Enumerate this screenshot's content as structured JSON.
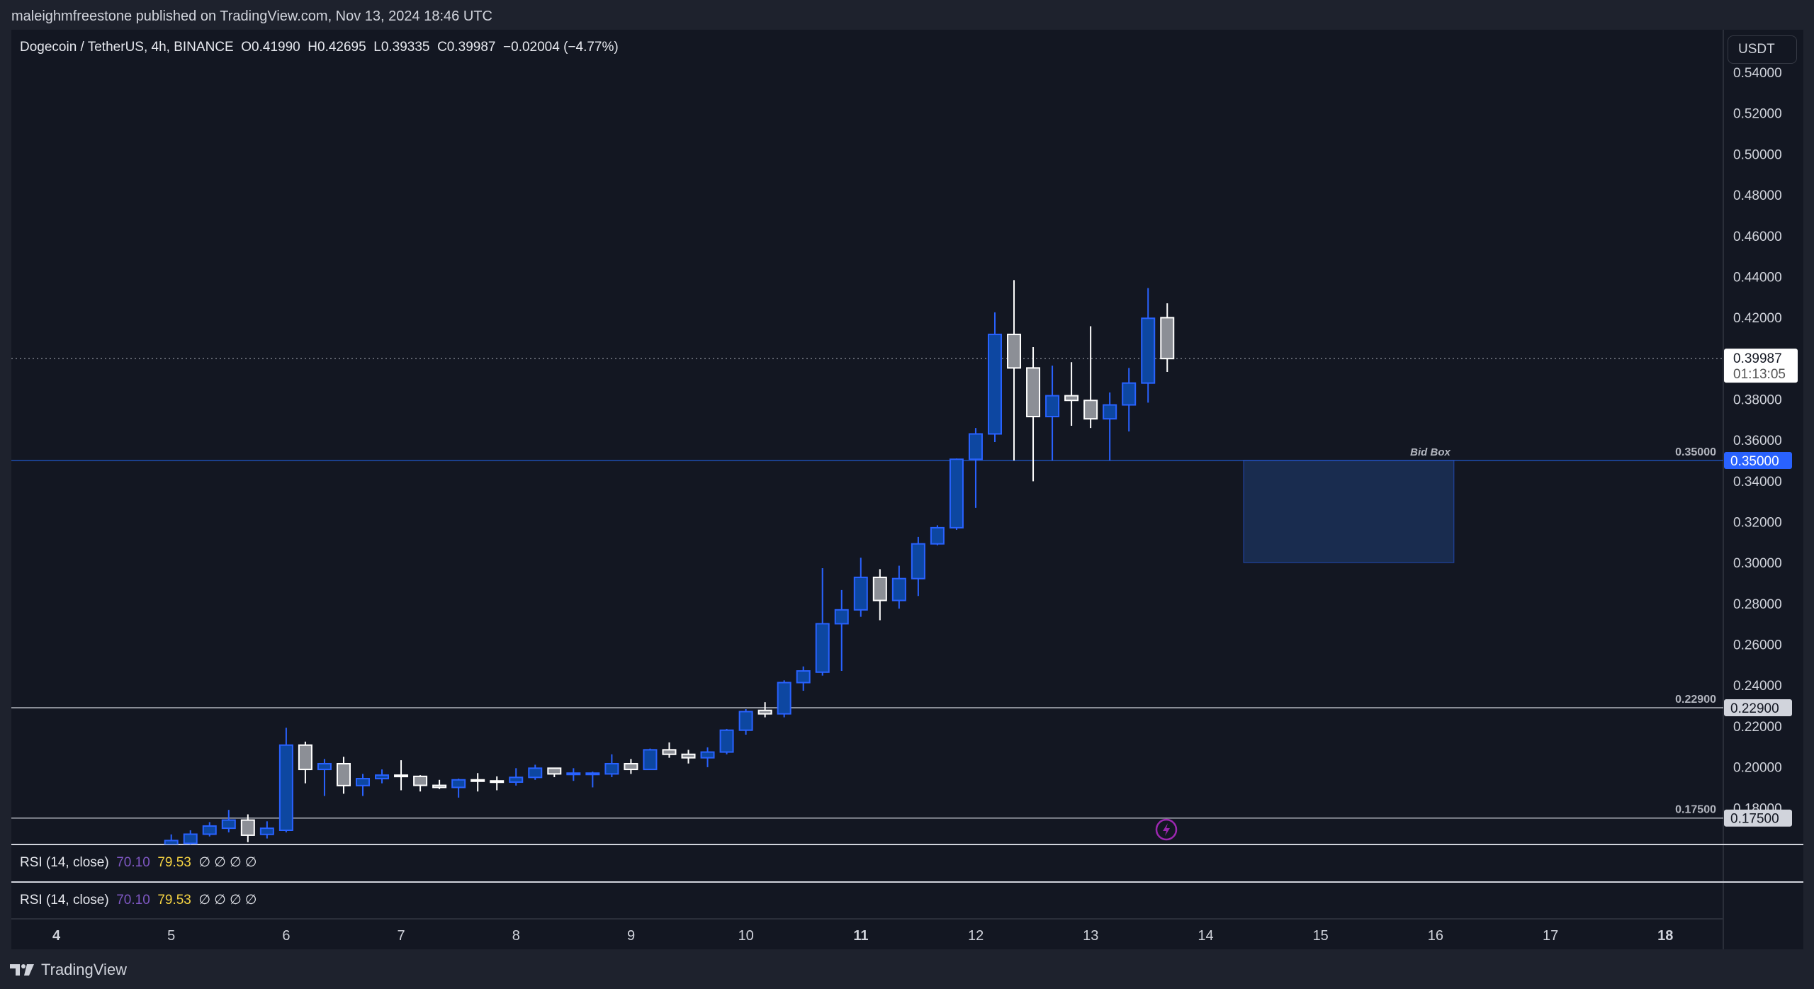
{
  "header": {
    "published": "maleighmfreestone published on TradingView.com, Nov 13, 2024 18:46 UTC"
  },
  "legend": {
    "symbol": "Dogecoin / TetherUS, 4h, BINANCE",
    "open": "O0.41990",
    "high": "H0.42695",
    "low": "L0.39335",
    "close": "C0.39987",
    "change": "−0.02004 (−4.77%)"
  },
  "price_axis": {
    "currency_button": "USDT",
    "ticks": [
      "0.54000",
      "0.52000",
      "0.50000",
      "0.48000",
      "0.46000",
      "0.44000",
      "0.42000",
      "0.38000",
      "0.36000",
      "0.34000",
      "0.32000",
      "0.30000",
      "0.28000",
      "0.26000",
      "0.24000",
      "0.22000",
      "0.20000",
      "0.18000"
    ],
    "last_price_tag": "0.39987",
    "countdown": "01:13:05"
  },
  "time_axis": {
    "ticks": [
      "4",
      "5",
      "6",
      "7",
      "8",
      "9",
      "10",
      "11",
      "12",
      "13",
      "14",
      "15",
      "16",
      "17",
      "18"
    ],
    "bold": [
      "4",
      "11",
      "18"
    ]
  },
  "levels": [
    {
      "price": 0.35,
      "label": "0.35000",
      "tag": "0.35000",
      "color": "#2962ff"
    },
    {
      "price": 0.229,
      "label": "0.22900",
      "tag": "0.22900",
      "color": "#b2b5be"
    },
    {
      "price": 0.175,
      "label": "0.17500",
      "tag": "0.17500",
      "color": "#b2b5be"
    }
  ],
  "bid_box": {
    "label": "Bid Box",
    "top": 0.35,
    "bottom": 0.3,
    "from_day": 14.33,
    "to_day": 16.16,
    "color": "#1e3a6e"
  },
  "rsi_panes": [
    {
      "title": "RSI (14, close)",
      "value1": "70.10",
      "value2": "79.53",
      "nulls": "∅ ∅ ∅ ∅"
    },
    {
      "title": "RSI (14, close)",
      "value1": "70.10",
      "value2": "79.53",
      "nulls": "∅ ∅ ∅ ∅"
    }
  ],
  "footer": {
    "brand": "TradingView"
  },
  "colors": {
    "up": "#0d47a1",
    "up_border": "#2962ff",
    "down": "#8c8f96",
    "down_border": "#ffffff",
    "background": "#131722"
  },
  "chart_data": {
    "type": "candlestick",
    "interval": "4h",
    "first_candle_day": 5,
    "ylim": [
      0.17,
      0.55
    ],
    "candles_ohlc": [
      [
        0.162,
        0.167,
        0.16,
        0.164
      ],
      [
        0.1626,
        0.169,
        0.161,
        0.1671
      ],
      [
        0.1671,
        0.173,
        0.166,
        0.1711
      ],
      [
        0.17,
        0.179,
        0.168,
        0.174
      ],
      [
        0.174,
        0.1768,
        0.1632,
        0.1666
      ],
      [
        0.167,
        0.1734,
        0.165,
        0.17
      ],
      [
        0.169,
        0.2192,
        0.168,
        0.2107
      ],
      [
        0.2107,
        0.2124,
        0.192,
        0.1988
      ],
      [
        0.1988,
        0.2039,
        0.1858,
        0.2016
      ],
      [
        0.2016,
        0.205,
        0.1869,
        0.1909
      ],
      [
        0.1909,
        0.1966,
        0.1858,
        0.1943
      ],
      [
        0.1943,
        0.1988,
        0.192,
        0.196
      ],
      [
        0.196,
        0.2033,
        0.1886,
        0.1954
      ],
      [
        0.1954,
        0.196,
        0.188,
        0.191
      ],
      [
        0.191,
        0.1937,
        0.1892,
        0.19
      ],
      [
        0.19,
        0.1943,
        0.185,
        0.1937
      ],
      [
        0.1937,
        0.197,
        0.188,
        0.1932
      ],
      [
        0.1932,
        0.1954,
        0.1886,
        0.1928
      ],
      [
        0.1926,
        0.1994,
        0.1909,
        0.1949
      ],
      [
        0.1949,
        0.2011,
        0.1937,
        0.1994
      ],
      [
        0.1994,
        0.1994,
        0.195,
        0.1966
      ],
      [
        0.1966,
        0.1994,
        0.1932,
        0.197
      ],
      [
        0.1966,
        0.1977,
        0.19,
        0.197
      ],
      [
        0.1966,
        0.2062,
        0.195,
        0.2016
      ],
      [
        0.2016,
        0.2039,
        0.1966,
        0.1988
      ],
      [
        0.1988,
        0.209,
        0.1988,
        0.2084
      ],
      [
        0.2084,
        0.212,
        0.2045,
        0.2062
      ],
      [
        0.2062,
        0.2084,
        0.2017,
        0.2045
      ],
      [
        0.2045,
        0.2096,
        0.1999,
        0.2073
      ],
      [
        0.2073,
        0.2186,
        0.2062,
        0.218
      ],
      [
        0.218,
        0.2283,
        0.2158,
        0.2271
      ],
      [
        0.2277,
        0.2317,
        0.2243,
        0.226
      ],
      [
        0.226,
        0.2424,
        0.2243,
        0.2413
      ],
      [
        0.2413,
        0.2492,
        0.2373,
        0.247
      ],
      [
        0.2464,
        0.2973,
        0.2447,
        0.2701
      ],
      [
        0.2701,
        0.2866,
        0.247,
        0.2769
      ],
      [
        0.2769,
        0.3024,
        0.2735,
        0.2928
      ],
      [
        0.2928,
        0.2968,
        0.2718,
        0.2815
      ],
      [
        0.2815,
        0.2985,
        0.2775,
        0.2922
      ],
      [
        0.2922,
        0.3126,
        0.2837,
        0.3092
      ],
      [
        0.3092,
        0.3183,
        0.3085,
        0.3171
      ],
      [
        0.3171,
        0.351,
        0.316,
        0.3506
      ],
      [
        0.3506,
        0.3659,
        0.3268,
        0.363
      ],
      [
        0.363,
        0.4225,
        0.359,
        0.4117
      ],
      [
        0.4117,
        0.4383,
        0.35,
        0.3953
      ],
      [
        0.3953,
        0.4055,
        0.3398,
        0.3715
      ],
      [
        0.3715,
        0.3964,
        0.35,
        0.3817
      ],
      [
        0.3817,
        0.3981,
        0.367,
        0.3794
      ],
      [
        0.3794,
        0.4157,
        0.3659,
        0.3704
      ],
      [
        0.3704,
        0.3833,
        0.35,
        0.3772
      ],
      [
        0.3772,
        0.3953,
        0.3642,
        0.3879
      ],
      [
        0.3879,
        0.4344,
        0.3783,
        0.4196
      ],
      [
        0.4199,
        0.42695,
        0.39335,
        0.39987
      ]
    ]
  }
}
